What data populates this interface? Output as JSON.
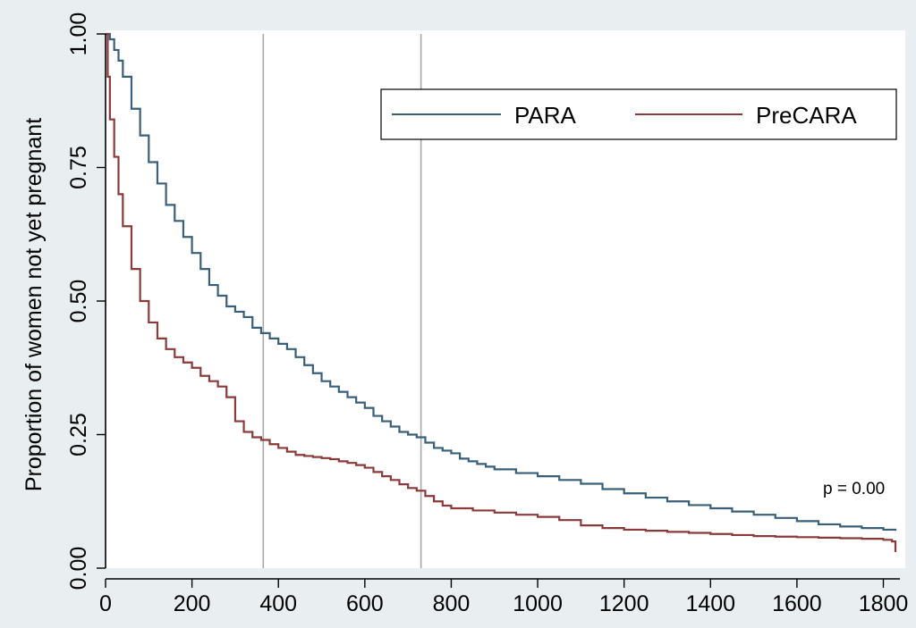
{
  "chart_data": {
    "type": "line",
    "title": "",
    "xlabel": "",
    "ylabel": "Proportion of women not yet pregnant",
    "xlim": [
      0,
      1830
    ],
    "ylim": [
      0,
      1.0
    ],
    "xticks": [
      0,
      200,
      400,
      600,
      800,
      1000,
      1200,
      1400,
      1600,
      1800
    ],
    "xtick_labels": [
      "0",
      "200",
      "400",
      "600",
      "800",
      "1000",
      "1200",
      "1400",
      "1600",
      "1800"
    ],
    "yticks": [
      0,
      0.25,
      0.5,
      0.75,
      1.0
    ],
    "ytick_labels": [
      "0.00",
      "0.25",
      "0.50",
      "0.75",
      "1.00"
    ],
    "grid": false,
    "vertical_reference_lines": [
      365,
      730
    ],
    "legend_position": "top-right",
    "annotation": "p = 0.00",
    "series": [
      {
        "name": "PARA",
        "color": "#3a5f78",
        "x": [
          0,
          10,
          20,
          30,
          40,
          60,
          80,
          100,
          120,
          140,
          160,
          180,
          200,
          220,
          240,
          260,
          280,
          300,
          320,
          340,
          360,
          380,
          400,
          420,
          440,
          460,
          480,
          500,
          520,
          540,
          560,
          580,
          600,
          620,
          640,
          660,
          680,
          700,
          720,
          740,
          760,
          780,
          800,
          820,
          840,
          860,
          880,
          900,
          950,
          1000,
          1050,
          1100,
          1150,
          1200,
          1250,
          1300,
          1350,
          1400,
          1450,
          1500,
          1550,
          1600,
          1650,
          1700,
          1750,
          1800,
          1828
        ],
        "values": [
          1.0,
          0.99,
          0.97,
          0.95,
          0.92,
          0.86,
          0.81,
          0.76,
          0.72,
          0.68,
          0.65,
          0.62,
          0.59,
          0.56,
          0.53,
          0.51,
          0.49,
          0.48,
          0.47,
          0.45,
          0.44,
          0.43,
          0.42,
          0.41,
          0.395,
          0.38,
          0.365,
          0.35,
          0.34,
          0.33,
          0.32,
          0.31,
          0.3,
          0.285,
          0.275,
          0.265,
          0.255,
          0.25,
          0.245,
          0.235,
          0.225,
          0.22,
          0.215,
          0.205,
          0.2,
          0.195,
          0.19,
          0.185,
          0.178,
          0.172,
          0.165,
          0.158,
          0.148,
          0.14,
          0.132,
          0.125,
          0.118,
          0.112,
          0.106,
          0.1,
          0.094,
          0.088,
          0.082,
          0.078,
          0.075,
          0.072,
          0.07
        ]
      },
      {
        "name": "PreCARA",
        "color": "#8a3a3a",
        "x": [
          0,
          5,
          10,
          20,
          30,
          40,
          60,
          80,
          100,
          120,
          140,
          160,
          180,
          200,
          220,
          240,
          260,
          280,
          300,
          320,
          340,
          360,
          380,
          400,
          420,
          440,
          460,
          480,
          500,
          520,
          540,
          560,
          580,
          600,
          620,
          640,
          660,
          680,
          700,
          720,
          740,
          760,
          780,
          800,
          850,
          900,
          950,
          1000,
          1050,
          1100,
          1150,
          1200,
          1250,
          1300,
          1350,
          1400,
          1450,
          1500,
          1550,
          1600,
          1650,
          1700,
          1750,
          1800,
          1820,
          1828
        ],
        "values": [
          1.0,
          0.92,
          0.84,
          0.77,
          0.7,
          0.64,
          0.56,
          0.5,
          0.46,
          0.43,
          0.41,
          0.395,
          0.385,
          0.375,
          0.36,
          0.35,
          0.34,
          0.32,
          0.275,
          0.255,
          0.245,
          0.24,
          0.232,
          0.225,
          0.218,
          0.212,
          0.21,
          0.208,
          0.206,
          0.204,
          0.2,
          0.197,
          0.193,
          0.188,
          0.18,
          0.172,
          0.165,
          0.157,
          0.15,
          0.145,
          0.135,
          0.125,
          0.117,
          0.112,
          0.108,
          0.104,
          0.1,
          0.096,
          0.09,
          0.08,
          0.075,
          0.072,
          0.07,
          0.068,
          0.066,
          0.064,
          0.062,
          0.06,
          0.059,
          0.058,
          0.057,
          0.056,
          0.055,
          0.053,
          0.05,
          0.03
        ]
      }
    ]
  }
}
